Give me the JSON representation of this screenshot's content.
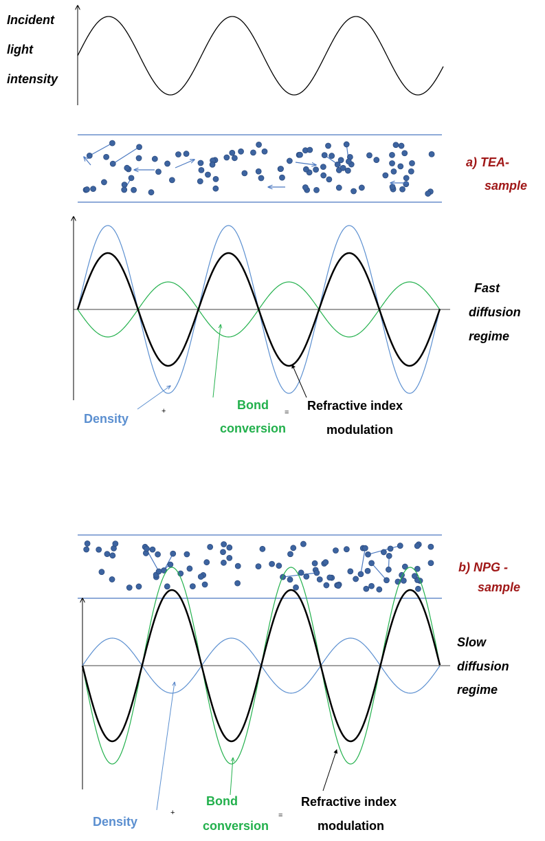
{
  "incident_label": [
    "Incident",
    "light",
    "intensity"
  ],
  "panels": [
    {
      "sample_label": [
        "a) TEA-",
        "sample"
      ],
      "regime_label": [
        "Fast",
        "diffusion",
        "regime"
      ],
      "legend": {
        "density": "Density",
        "plus": "+",
        "bond": [
          "Bond",
          "conversion"
        ],
        "equals": "=",
        "refractive": [
          "Refractive index",
          "modulation"
        ]
      }
    },
    {
      "sample_label": [
        "b) NPG -",
        "sample"
      ],
      "regime_label": [
        "Slow",
        "diffusion",
        "regime"
      ],
      "legend": {
        "density": "Density",
        "plus": "+",
        "bond": [
          "Bond",
          "conversion"
        ],
        "equals": "=",
        "refractive": [
          "Refractive index",
          "modulation"
        ]
      }
    }
  ]
}
